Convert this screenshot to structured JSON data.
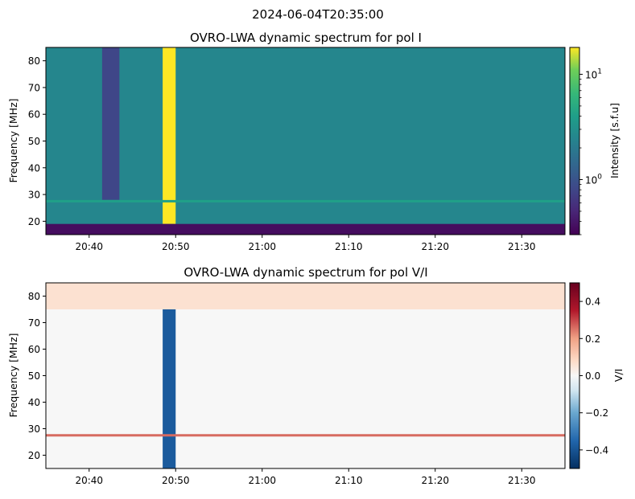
{
  "figure": {
    "suptitle": "2024-06-04T20:35:00"
  },
  "chart_data": [
    {
      "type": "heatmap",
      "title": "OVRO-LWA dynamic spectrum for pol I",
      "xlabel": "",
      "ylabel": "Frequency [MHz]",
      "colorbar_label": "Intensity [s.f.u]",
      "colormap": "viridis",
      "color_scale": "log",
      "clim": [
        0.3,
        18
      ],
      "colorbar_ticks": [
        {
          "value": 1,
          "label": "10",
          "exp": "0"
        },
        {
          "value": 10,
          "label": "10",
          "exp": "1"
        }
      ],
      "xlim": [
        "20:35",
        "21:35"
      ],
      "ylim": [
        15,
        85
      ],
      "x_ticks": [
        "20:40",
        "20:50",
        "21:00",
        "21:10",
        "21:20",
        "21:30"
      ],
      "y_ticks": [
        20,
        30,
        40,
        50,
        60,
        70,
        80
      ],
      "background_level": 2.5,
      "features": [
        {
          "kind": "data gap",
          "time_start": "20:41.5",
          "time_end": "20:43.5",
          "freq_range": [
            28,
            85
          ],
          "value": 0.8
        },
        {
          "kind": "radio burst",
          "time_start": "20:48.5",
          "time_end": "20:50",
          "freq_range": [
            19,
            85
          ],
          "value": 18
        },
        {
          "kind": "low-frequency band",
          "freq_range": [
            15,
            19
          ],
          "value": 0.35
        },
        {
          "kind": "interference line",
          "freq": 27.5,
          "value": 4
        }
      ]
    },
    {
      "type": "heatmap",
      "title": "OVRO-LWA dynamic spectrum for pol V/I",
      "xlabel": "",
      "ylabel": "Frequency [MHz]",
      "colorbar_label": "V/I",
      "colormap": "RdBu_r",
      "color_scale": "linear",
      "clim": [
        -0.5,
        0.5
      ],
      "colorbar_ticks": [
        0.4,
        0.2,
        0.0,
        -0.2,
        -0.4
      ],
      "colorbar_tick_labels": [
        "0.4",
        "0.2",
        "0.0",
        "−0.2",
        "−0.4"
      ],
      "xlim": [
        "20:35",
        "21:35"
      ],
      "ylim": [
        15,
        85
      ],
      "x_ticks": [
        "20:40",
        "20:50",
        "21:00",
        "21:10",
        "21:20",
        "21:30"
      ],
      "y_ticks": [
        20,
        30,
        40,
        50,
        60,
        70,
        80
      ],
      "background_level": 0.0,
      "features": [
        {
          "kind": "radio burst",
          "time_start": "20:48.5",
          "time_end": "20:50",
          "freq_range": [
            15,
            85
          ],
          "value": -0.4
        },
        {
          "kind": "high-frequency band",
          "freq_range": [
            75,
            85
          ],
          "value": 0.1
        },
        {
          "kind": "interference line",
          "freq": 27.5,
          "value": 0.3
        }
      ]
    }
  ]
}
